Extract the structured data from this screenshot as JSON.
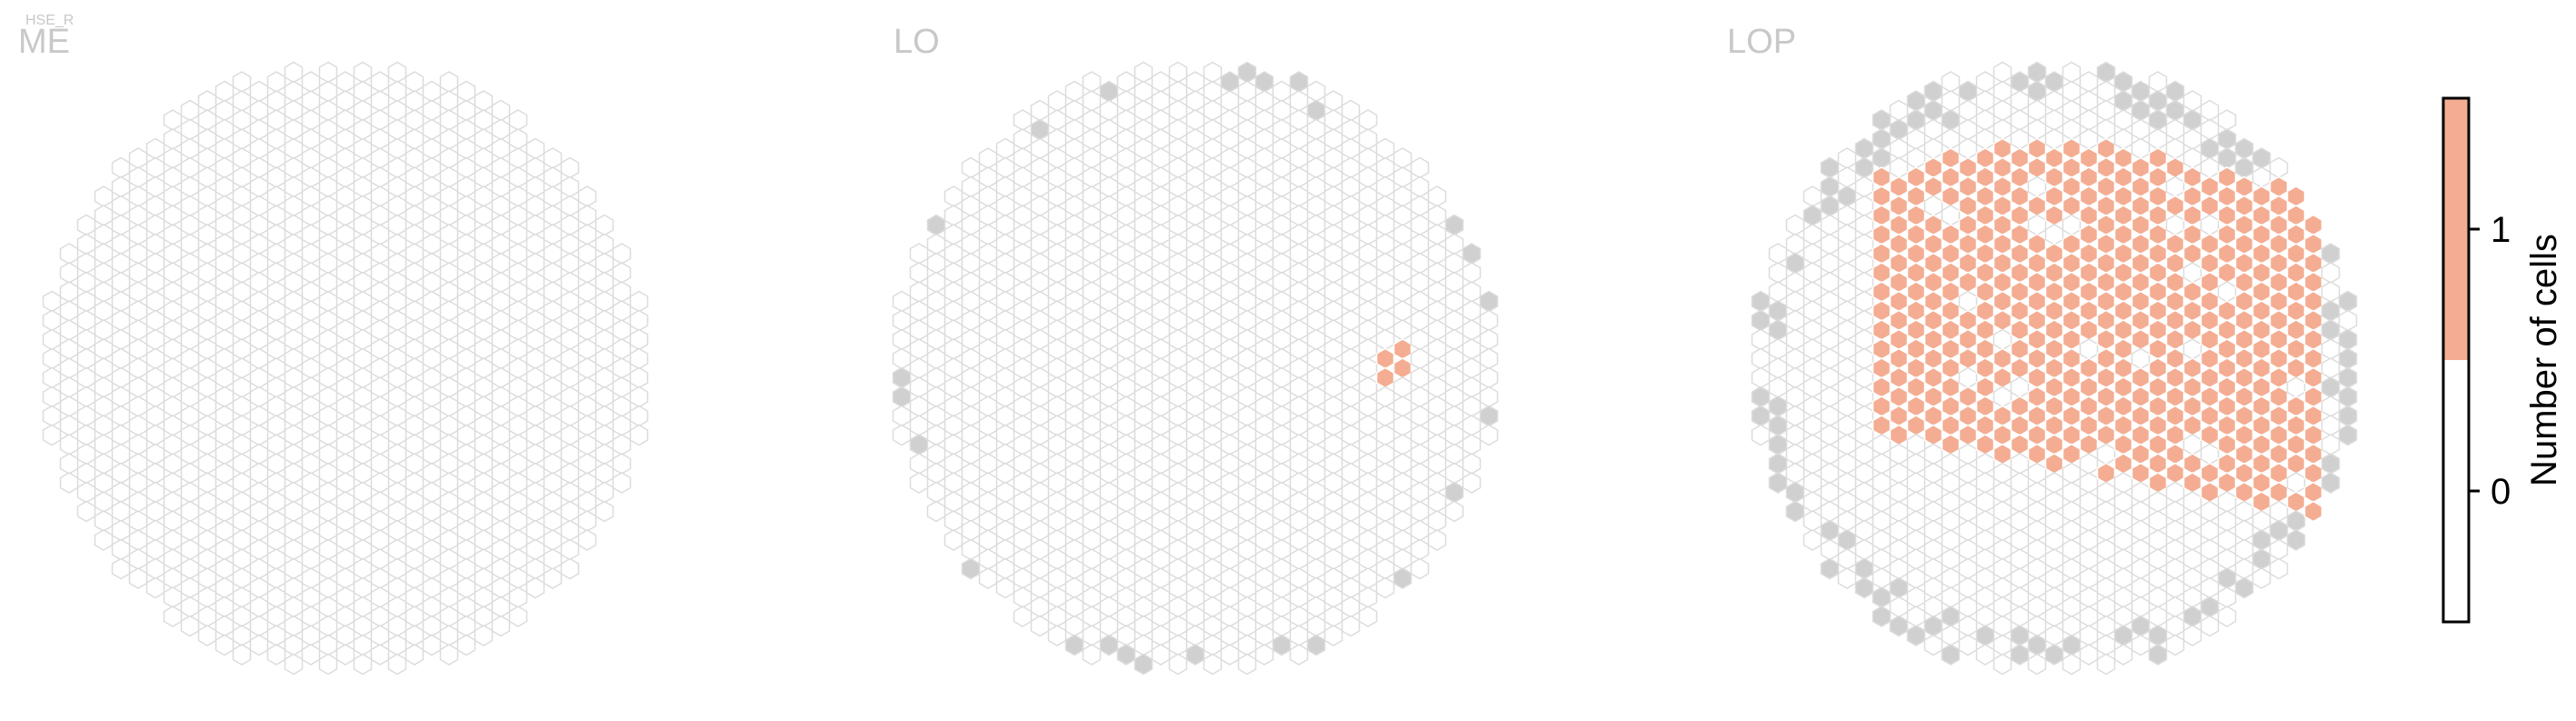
{
  "header": {
    "cell_type": "HSE_R"
  },
  "colors": {
    "empty_stroke": "#dcdcdc",
    "gray_fill": "#d0d0d0",
    "count_fill": "#f4ad92",
    "title_color": "#c8c8c8"
  },
  "chart_data": {
    "type": "heatmap",
    "layout": "hexagonal column grid",
    "panels": [
      {
        "title": "ME",
        "grid": {
          "rows": [
            0,
            40
          ],
          "cols": [
            0,
            34
          ]
        },
        "highlighted_columns": []
      },
      {
        "title": "LO",
        "grid": {
          "rows": [
            0,
            40
          ],
          "cols": [
            0,
            34
          ]
        },
        "highlighted_columns": [
          [
            17,
            28
          ],
          [
            17,
            29
          ],
          [
            16,
            29
          ],
          [
            18,
            28
          ],
          [
            16,
            28
          ]
        ]
      },
      {
        "title": "LOP",
        "grid": {
          "rows": [
            0,
            40
          ],
          "cols": [
            0,
            34
          ]
        },
        "highlighted_region": {
          "rows": [
            9,
            26
          ],
          "cols": [
            4,
            31
          ],
          "value": 1
        }
      }
    ],
    "colorbar": {
      "label": "Number of cells",
      "ticks": [
        "0",
        "1"
      ],
      "range": [
        -0.5,
        1.5
      ],
      "bins": [
        {
          "value": 0,
          "color": "#ffffff"
        },
        {
          "value": 1,
          "color": "#f4ad92"
        }
      ]
    }
  }
}
